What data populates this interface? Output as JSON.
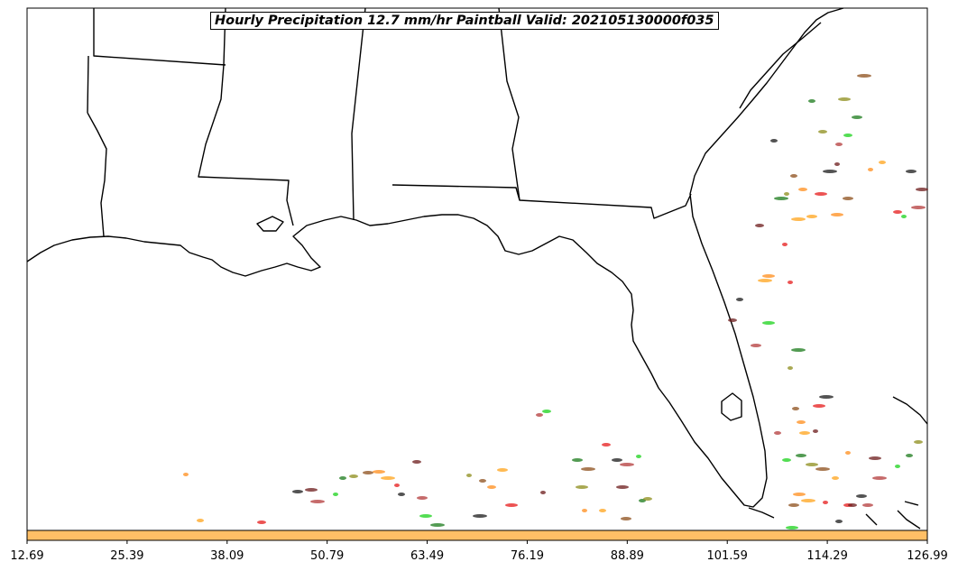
{
  "title": "Hourly Precipitation 12.7 mm/hr Paintball Valid: 202105130000f035",
  "colorbar": {
    "color": "#ffbf66",
    "ticks": [
      "12.69",
      "25.39",
      "38.09",
      "50.79",
      "63.49",
      "76.19",
      "88.89",
      "101.59",
      "114.29",
      "126.99"
    ]
  },
  "paint_colors": [
    "#ff8c1a",
    "#ffa31a",
    "#e61919",
    "#1a1a1a",
    "#6b1a1a",
    "#b33a3a",
    "#1ad11a",
    "#1a7a1a",
    "#8c8c1a",
    "#8c4d1a"
  ]
}
